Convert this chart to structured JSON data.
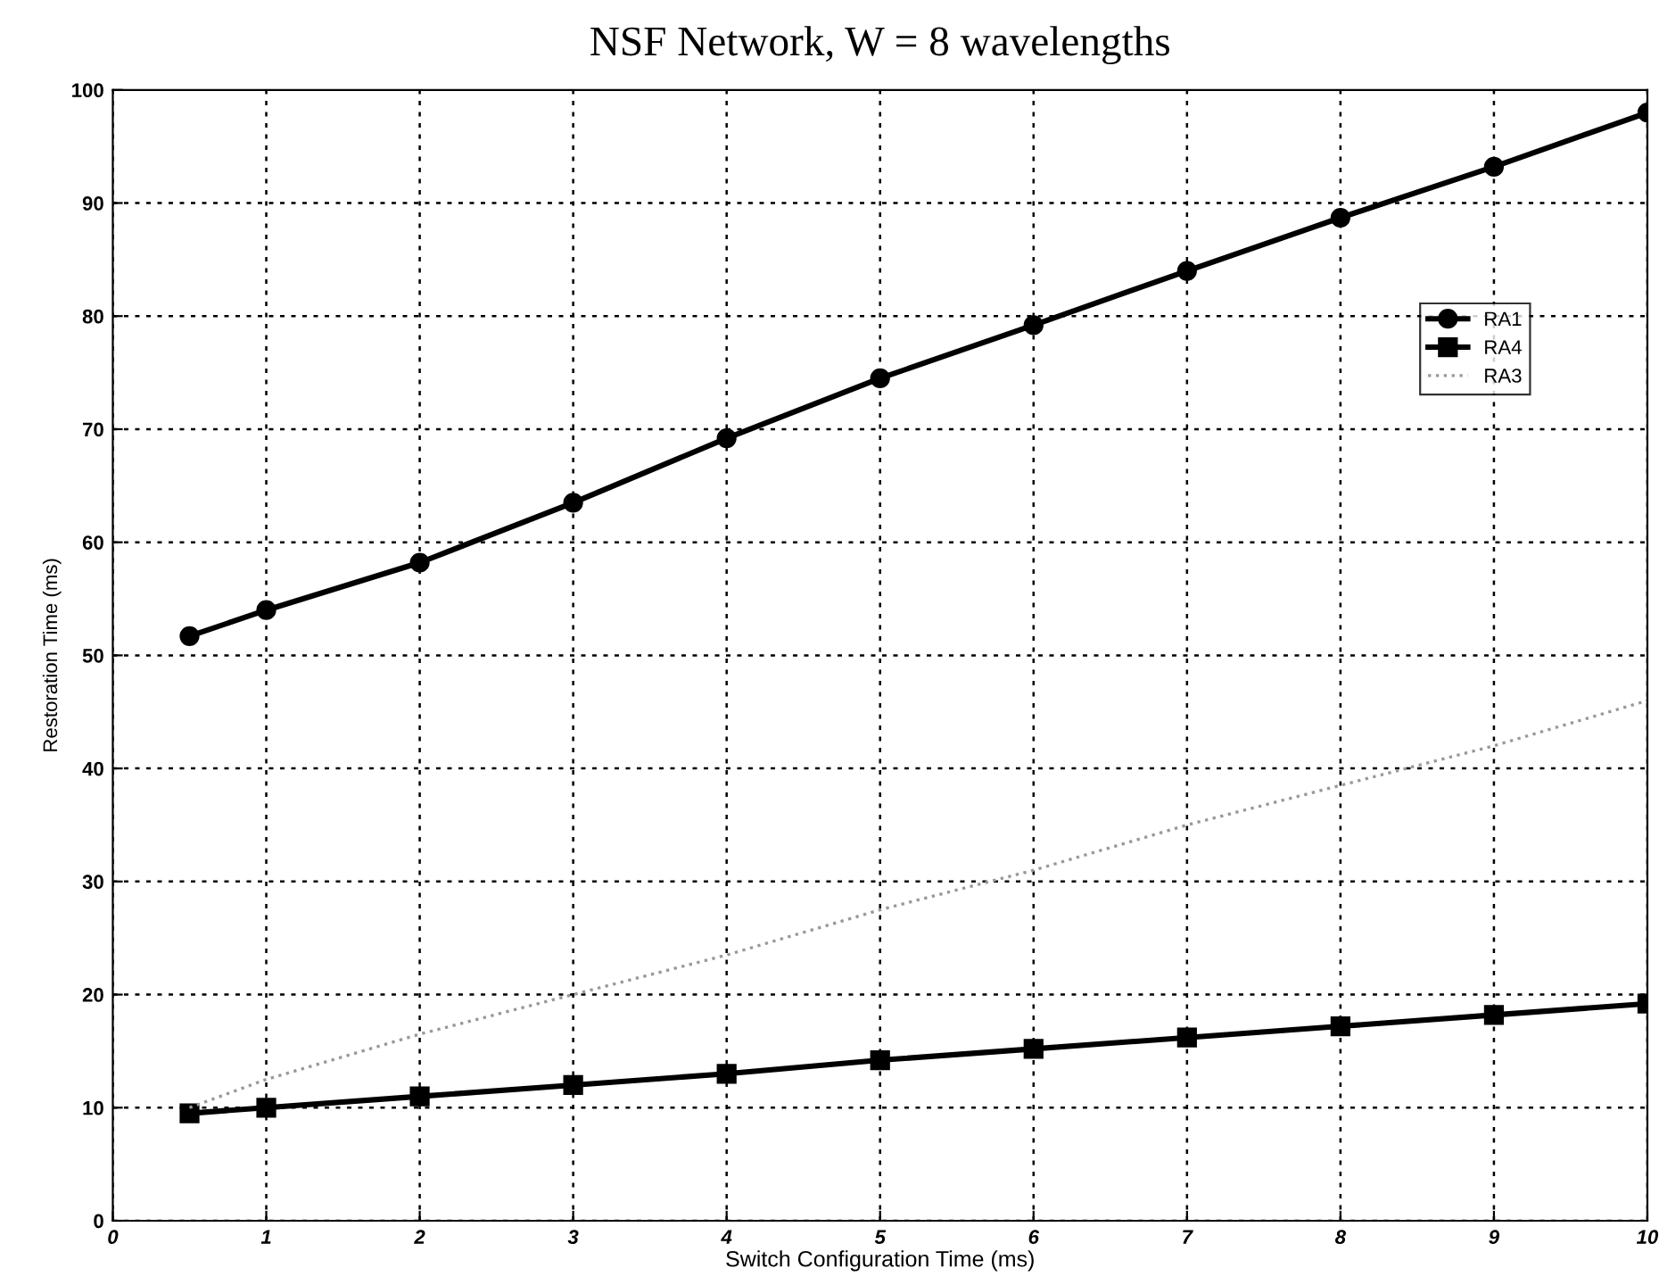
{
  "chart_data": {
    "type": "line",
    "title": "NSF Network, W = 8 wavelengths",
    "xlabel": "Switch Configuration Time (ms)",
    "ylabel": "Restoration Time (ms)",
    "x": [
      0.5,
      1,
      2,
      3,
      4,
      5,
      6,
      7,
      8,
      9,
      10
    ],
    "series": [
      {
        "name": "RA1",
        "color": "#000000",
        "marker": "circle",
        "line_style": "solid",
        "values": [
          51.7,
          54,
          58.2,
          63.5,
          69.2,
          74.5,
          79.2,
          84,
          88.7,
          93.2,
          98
        ]
      },
      {
        "name": "RA4",
        "color": "#000000",
        "marker": "square",
        "line_style": "solid",
        "values": [
          9.5,
          10,
          11,
          12,
          13,
          14.2,
          15.2,
          16.2,
          17.2,
          18.2,
          19.2
        ]
      },
      {
        "name": "RA3",
        "color": "#999999",
        "marker": "none",
        "line_style": "dotted",
        "values": [
          10,
          12.5,
          16.5,
          20,
          23.5,
          27.5,
          31,
          35,
          38.5,
          42,
          46
        ]
      }
    ],
    "xlim": [
      0,
      10
    ],
    "xticks": [
      0,
      1,
      2,
      3,
      4,
      5,
      6,
      7,
      8,
      9,
      10
    ],
    "ylim": [
      0,
      100
    ],
    "yticks": [
      0,
      10,
      20,
      30,
      40,
      50,
      60,
      70,
      80,
      90,
      100
    ],
    "grid": true,
    "legend": "upper right"
  }
}
